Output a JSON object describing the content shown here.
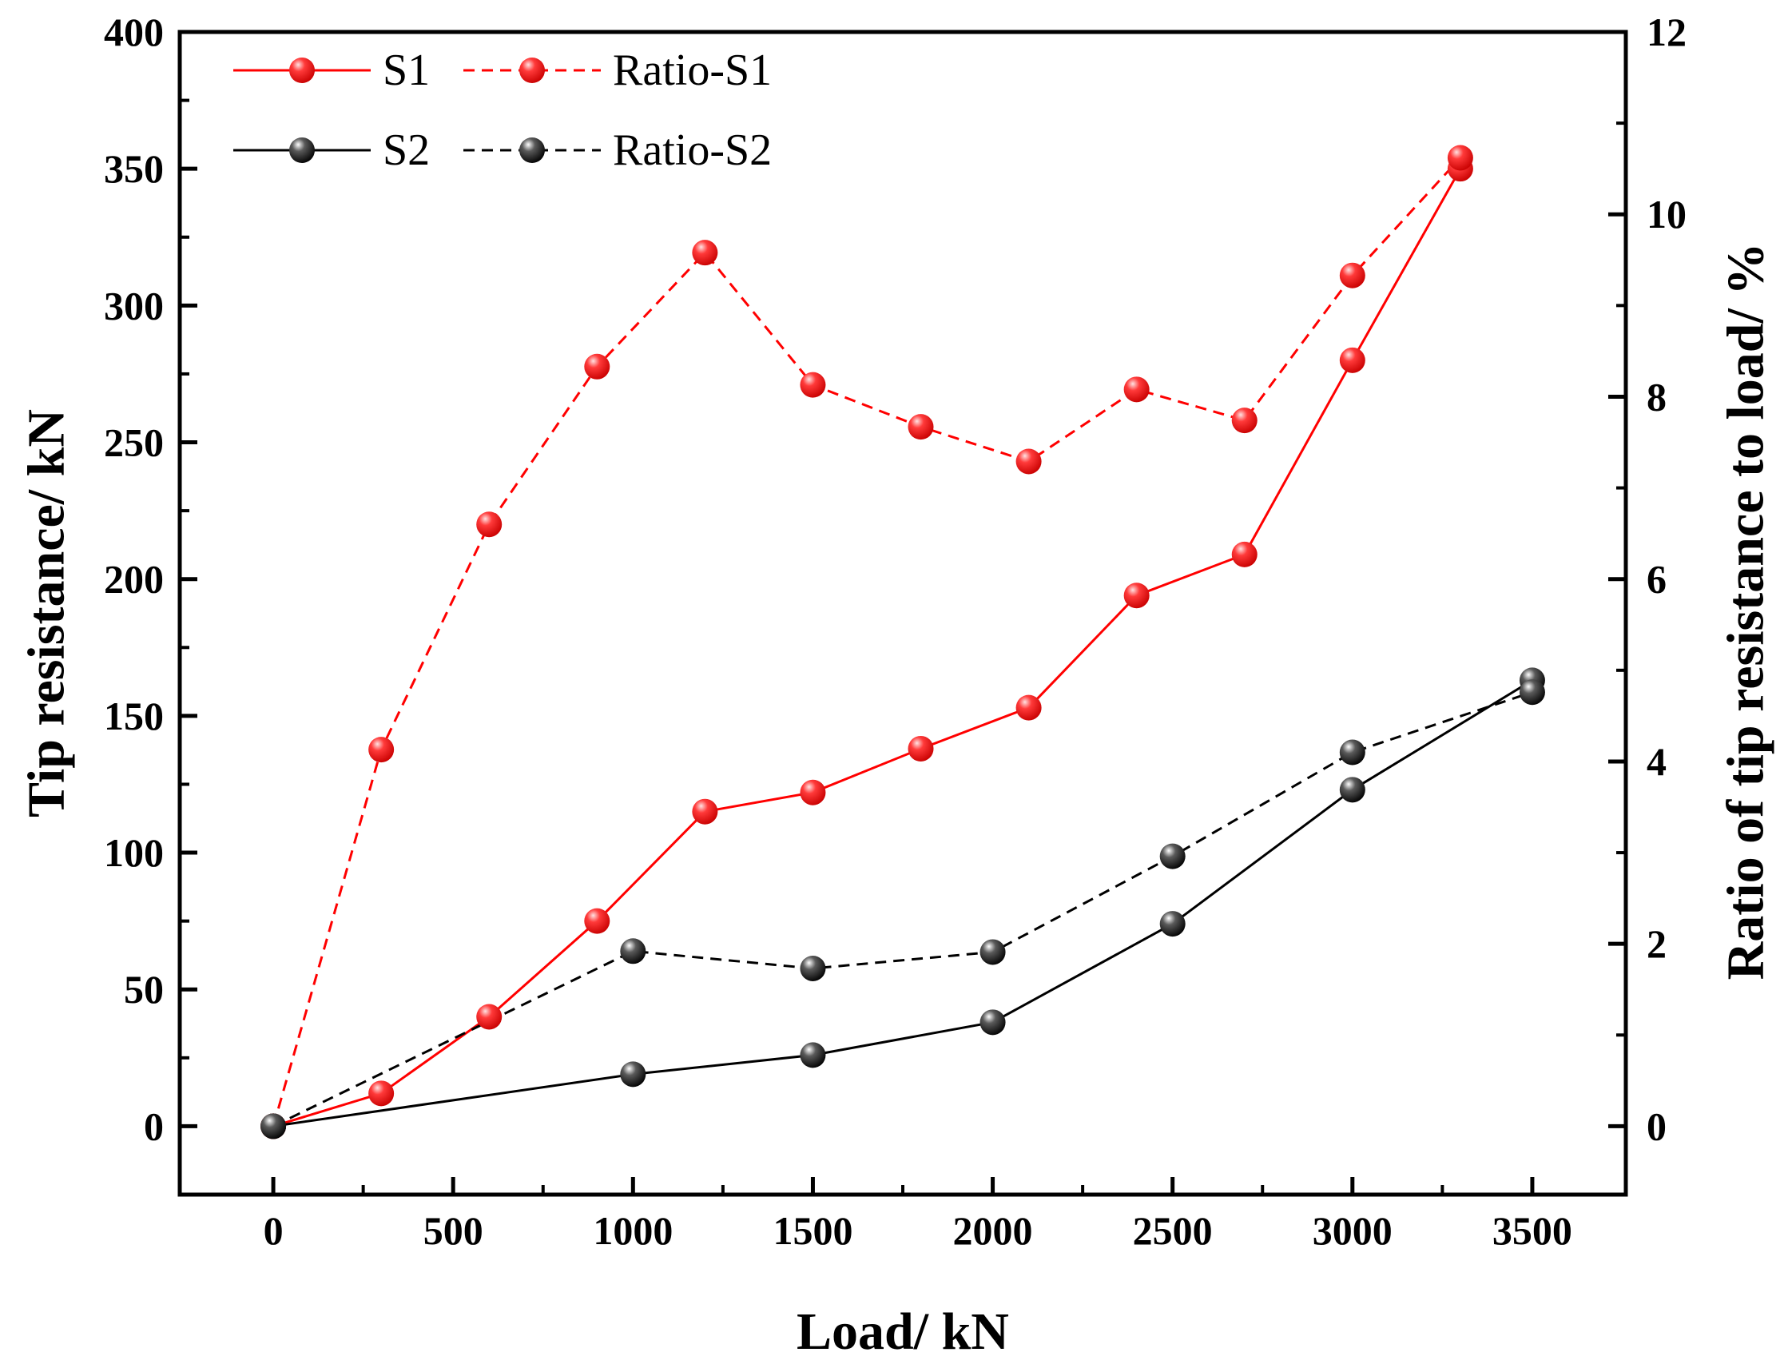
{
  "chart_data": {
    "type": "line",
    "title": "",
    "xlabel": "Load/ kN",
    "ylabel": "Tip resistance/ kN",
    "y2label": "Ratio of tip resistance to load/ %",
    "xlim": [
      -260,
      3760
    ],
    "ylim": [
      -25,
      400
    ],
    "y2lim": [
      -0.75,
      12
    ],
    "x_ticks": [
      0,
      500,
      1000,
      1500,
      2000,
      2500,
      3000,
      3500
    ],
    "x_minor_ticks": [
      250,
      750,
      1250,
      1750,
      2250,
      2750,
      3250
    ],
    "y_ticks": [
      0,
      50,
      100,
      150,
      200,
      250,
      300,
      350,
      400
    ],
    "y_minor_ticks": [
      25,
      75,
      125,
      175,
      225,
      275,
      325,
      375
    ],
    "y2_ticks": [
      0,
      2,
      4,
      6,
      8,
      10,
      12
    ],
    "y2_minor_ticks": [
      1,
      3,
      5,
      7,
      9,
      11
    ],
    "legend_position": "top-left",
    "series": [
      {
        "name": "S1",
        "axis": "left",
        "line_style": "solid",
        "color": "#ff0000",
        "x": [
          0,
          300,
          600,
          900,
          1200,
          1500,
          1800,
          2100,
          2400,
          2700,
          3000,
          3300
        ],
        "values": [
          0,
          12,
          40,
          75,
          115,
          122,
          138,
          153,
          194,
          209,
          280,
          350
        ]
      },
      {
        "name": "Ratio-S1",
        "axis": "right",
        "line_style": "dashed",
        "color": "#ff0000",
        "x": [
          0,
          300,
          600,
          900,
          1200,
          1500,
          1800,
          2100,
          2400,
          2700,
          3000,
          3300
        ],
        "values": [
          0,
          4.13,
          6.6,
          8.33,
          9.58,
          8.13,
          7.67,
          7.29,
          8.08,
          7.74,
          9.33,
          10.62
        ]
      },
      {
        "name": "S2",
        "axis": "left",
        "line_style": "solid",
        "color": "#000000",
        "x": [
          0,
          1000,
          1500,
          2000,
          2500,
          3000,
          3500
        ],
        "values": [
          0,
          19,
          26,
          38,
          74,
          123,
          163
        ]
      },
      {
        "name": "Ratio-S2",
        "axis": "right",
        "line_style": "dashed",
        "color": "#000000",
        "x": [
          0,
          1000,
          1500,
          2000,
          2500,
          3000,
          3500
        ],
        "values": [
          0,
          1.92,
          1.73,
          1.91,
          2.96,
          4.1,
          4.76
        ]
      }
    ]
  }
}
